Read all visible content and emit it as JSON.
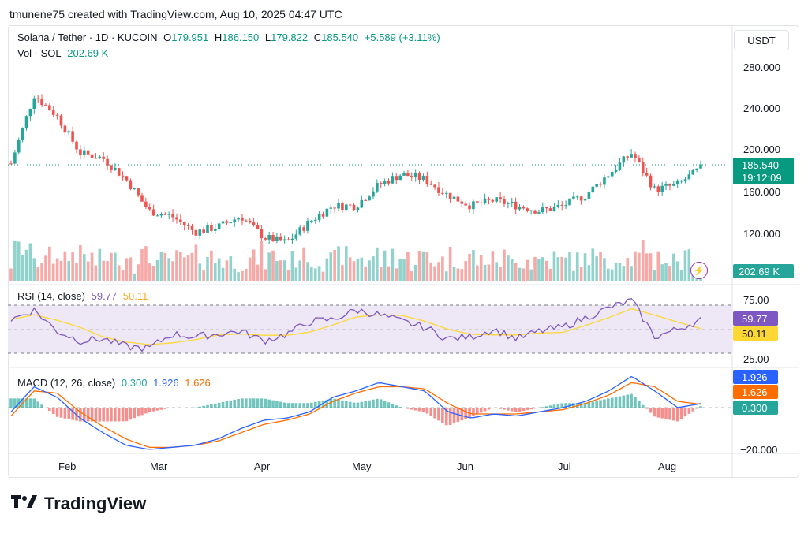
{
  "credit": "tmunene75 created with TradingView.com, Aug 10, 2025 04:47 UTC",
  "header": {
    "symbol": "Solana / Tether · 1D · KUCOIN",
    "o_label": "O",
    "o_value": "179.951",
    "h_label": "H",
    "h_value": "186.150",
    "l_label": "L",
    "l_value": "179.822",
    "c_label": "C",
    "c_value": "185.540",
    "change": "+5.589 (+3.11%)",
    "vol_label": "Vol · SOL",
    "vol_value": "202.69 K"
  },
  "currency_button": "USDT",
  "price_axis": {
    "ticks": [
      "280.000",
      "240.000",
      "200.000",
      "160.000",
      "120.000"
    ],
    "last_price": "185.540",
    "countdown": "19:12:09",
    "volume_badge": "202.69 K"
  },
  "rsi": {
    "label": "RSI (14, close)",
    "value": "59.77",
    "ma_value": "50.11",
    "ticks": [
      "75.00",
      "25.00"
    ]
  },
  "macd": {
    "label": "MACD (12, 26, close)",
    "hist_value": "0.300",
    "macd_value": "1.926",
    "signal_value": "1.626",
    "ticks": [
      "−20.000"
    ]
  },
  "time_axis": [
    "Feb",
    "Mar",
    "Apr",
    "May",
    "Jun",
    "Jul",
    "Aug"
  ],
  "colors": {
    "up": "#26a69a",
    "down": "#ef5350",
    "rsi": "#7e57c2",
    "rsi_ma": "#fdd835",
    "macd": "#2962ff",
    "signal": "#ff6d00"
  },
  "brand": "TradingView",
  "chart_data": {
    "type": "line",
    "title": "Solana / Tether · 1D · KUCOIN",
    "x": [
      "2025-01-15",
      "2025-01-22",
      "2025-01-29",
      "2025-02-05",
      "2025-02-12",
      "2025-02-19",
      "2025-02-26",
      "2025-03-05",
      "2025-03-12",
      "2025-03-19",
      "2025-03-26",
      "2025-04-02",
      "2025-04-09",
      "2025-04-16",
      "2025-04-23",
      "2025-04-30",
      "2025-05-07",
      "2025-05-14",
      "2025-05-21",
      "2025-05-28",
      "2025-06-04",
      "2025-06-11",
      "2025-06-18",
      "2025-06-25",
      "2025-07-02",
      "2025-07-09",
      "2025-07-16",
      "2025-07-23",
      "2025-07-30",
      "2025-08-06",
      "2025-08-10"
    ],
    "series": [
      {
        "name": "Close",
        "values": [
          190,
          255,
          235,
          200,
          195,
          175,
          145,
          140,
          125,
          130,
          140,
          120,
          115,
          135,
          150,
          150,
          170,
          180,
          175,
          160,
          150,
          155,
          150,
          145,
          150,
          160,
          180,
          200,
          165,
          170,
          185.54
        ]
      },
      {
        "name": "RSI (14, close)",
        "values": [
          60,
          70,
          48,
          38,
          40,
          32,
          30,
          45,
          42,
          45,
          48,
          38,
          45,
          58,
          60,
          70,
          65,
          58,
          52,
          40,
          42,
          50,
          40,
          48,
          52,
          62,
          72,
          80,
          42,
          50,
          59.77
        ]
      },
      {
        "name": "MACD",
        "values": [
          -2,
          10,
          5,
          -5,
          -12,
          -18,
          -20,
          -19,
          -18,
          -15,
          -10,
          -6,
          -5,
          -2,
          5,
          8,
          12,
          10,
          8,
          -2,
          -5,
          -3,
          -4,
          -2,
          0,
          3,
          8,
          15,
          8,
          0,
          1.926
        ]
      },
      {
        "name": "Signal",
        "values": [
          -4,
          8,
          7,
          -2,
          -9,
          -15,
          -19,
          -19,
          -18,
          -16,
          -12,
          -8,
          -6,
          -3,
          3,
          7,
          10,
          10,
          9,
          2,
          -3,
          -3,
          -3,
          -2,
          -1,
          2,
          6,
          12,
          10,
          3,
          1.626
        ]
      }
    ],
    "ylim": [
      95,
      300
    ]
  }
}
